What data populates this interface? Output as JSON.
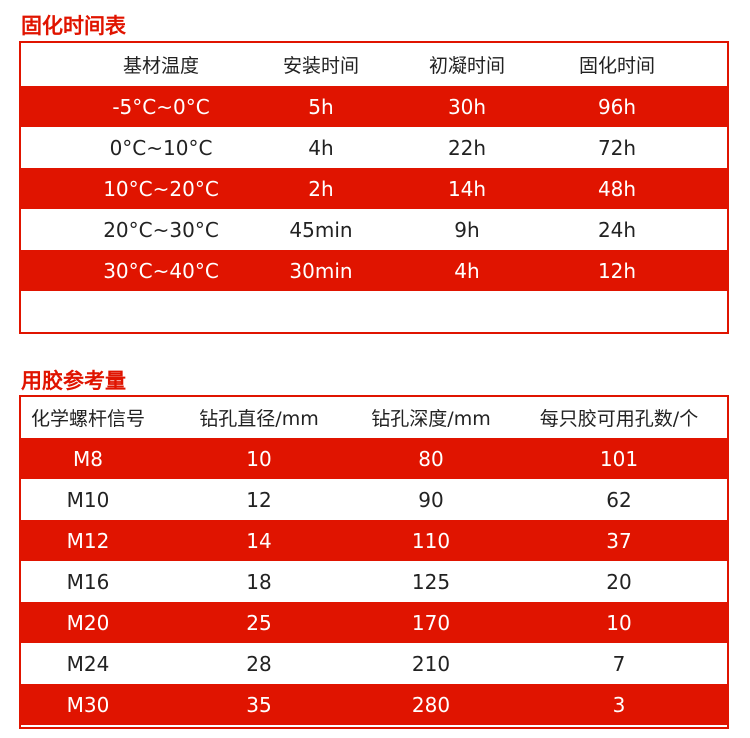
{
  "cure": {
    "title": "固化时间表",
    "headers": [
      "基材温度",
      "安装时间",
      "初凝时间",
      "固化时间"
    ],
    "rows": [
      [
        "-5°C~0°C",
        "5h",
        "30h",
        "96h"
      ],
      [
        "0°C~10°C",
        "4h",
        "22h",
        "72h"
      ],
      [
        "10°C~20°C",
        "2h",
        "14h",
        "48h"
      ],
      [
        "20°C~30°C",
        "45min",
        "9h",
        "24h"
      ],
      [
        "30°C~40°C",
        "30min",
        "4h",
        "12h"
      ]
    ]
  },
  "glue": {
    "title": "用胶参考量",
    "headers": [
      "化学螺杆信号",
      "钻孔直径/mm",
      "钻孔深度/mm",
      "每只胶可用孔数/个"
    ],
    "rows": [
      [
        "M8",
        "10",
        "80",
        "101"
      ],
      [
        "M10",
        "12",
        "90",
        "62"
      ],
      [
        "M12",
        "14",
        "110",
        "37"
      ],
      [
        "M16",
        "18",
        "125",
        "20"
      ],
      [
        "M20",
        "25",
        "170",
        "10"
      ],
      [
        "M24",
        "28",
        "210",
        "7"
      ],
      [
        "M30",
        "35",
        "280",
        "3"
      ]
    ]
  },
  "colors": {
    "accent": "#e01400"
  }
}
